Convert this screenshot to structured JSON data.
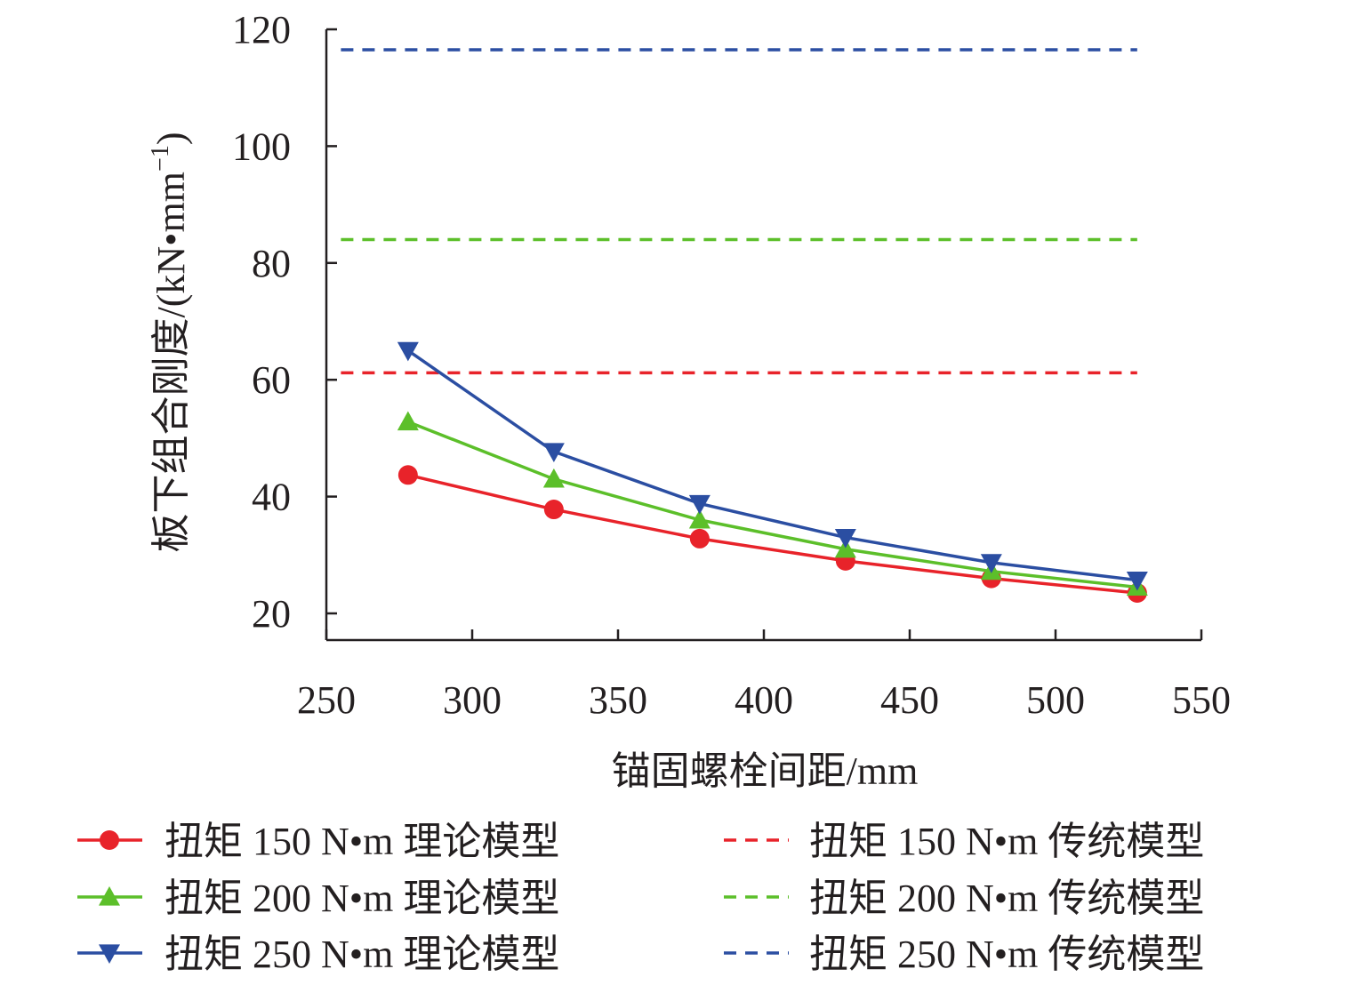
{
  "chart_data": {
    "type": "line",
    "xlabel": "锚固螺栓间距/mm",
    "ylabel": "板下组合刚度/(kN•mm",
    "ylabel_sup": "−1",
    "ylabel_close": ")",
    "xlim": [
      250,
      550
    ],
    "ylim": [
      20,
      120
    ],
    "x_ticks": [
      250,
      300,
      350,
      400,
      450,
      500,
      550
    ],
    "y_ticks": [
      20,
      40,
      60,
      80,
      100,
      120
    ],
    "x_tick_labels": [
      "250",
      "300",
      "350",
      "400",
      "450",
      "500",
      "550"
    ],
    "y_tick_labels": [
      "20",
      "40",
      "60",
      "80",
      "100",
      "120"
    ],
    "x": [
      278,
      328,
      378,
      428,
      478,
      528
    ],
    "series": [
      {
        "name": "扭矩 150 N•m 理论模型",
        "kind": "line",
        "marker": "circle",
        "color": "#e8232a",
        "values": [
          43.7,
          37.8,
          32.8,
          29.0,
          26.0,
          23.5
        ]
      },
      {
        "name": "扭矩 200 N•m 理论模型",
        "kind": "line",
        "marker": "triangle-up",
        "color": "#5cbf2a",
        "values": [
          52.8,
          43.0,
          36.0,
          31.0,
          27.2,
          24.5
        ]
      },
      {
        "name": "扭矩 250 N•m 理论模型",
        "kind": "line",
        "marker": "triangle-down",
        "color": "#2b4ea2",
        "values": [
          65.0,
          47.7,
          38.8,
          33.0,
          28.7,
          25.7
        ]
      }
    ],
    "reference_lines": [
      {
        "name": "扭矩 150 N•m 传统模型",
        "kind": "dashed",
        "color": "#e8232a",
        "value": 61.2,
        "x_range": [
          255,
          528
        ]
      },
      {
        "name": "扭矩 200 N•m 传统模型",
        "kind": "dashed",
        "color": "#5cbf2a",
        "value": 84.0,
        "x_range": [
          255,
          528
        ]
      },
      {
        "name": "扭矩 250 N•m 传统模型",
        "kind": "dashed",
        "color": "#2b4ea2",
        "value": 116.5,
        "x_range": [
          255,
          528
        ]
      }
    ],
    "legend_position": "bottom"
  }
}
